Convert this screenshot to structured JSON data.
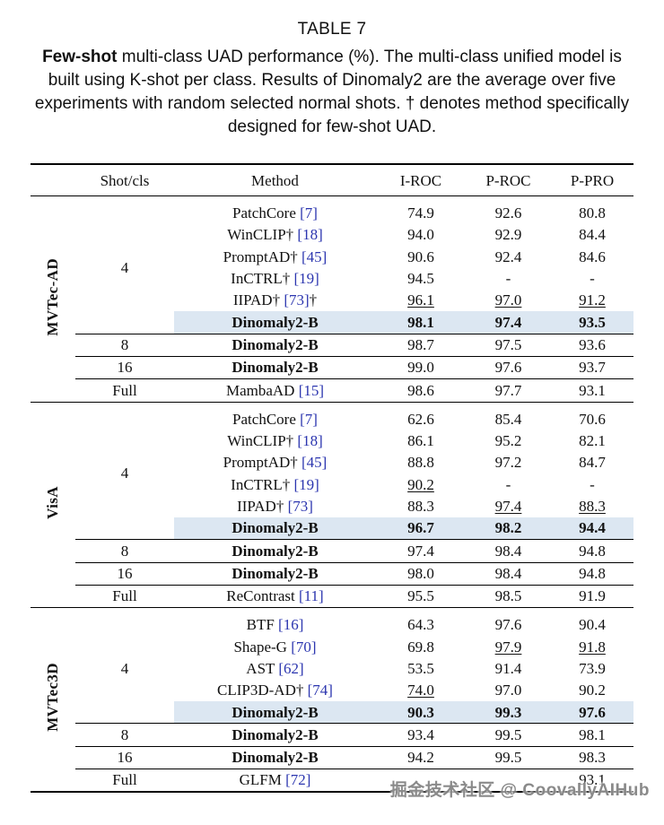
{
  "title": "TABLE 7",
  "caption": {
    "bold_prefix": "Few-shot",
    "rest": " multi-class UAD performance (%). The multi-class unified model is built using K-shot per class. Results of Dinomaly2 are the average over five experiments with random selected normal shots. † denotes method specifically designed for few-shot UAD."
  },
  "colors": {
    "highlight": "#dce7f2",
    "citation": "#2b35af"
  },
  "watermark": "掘金技术社区 @ CoovallyAIHub",
  "table": {
    "columns": [
      "Shot/cls",
      "Method",
      "I-ROC",
      "P-ROC",
      "P-PRO"
    ],
    "groups": [
      {
        "dataset": "MVTec-AD",
        "blocks": [
          {
            "shot": "4",
            "rows": [
              {
                "method": "PatchCore",
                "cite": "[7]",
                "values": [
                  {
                    "t": "74.9"
                  },
                  {
                    "t": "92.6"
                  },
                  {
                    "t": "80.8"
                  }
                ]
              },
              {
                "method": "WinCLIP†",
                "cite": "[18]",
                "values": [
                  {
                    "t": "94.0"
                  },
                  {
                    "t": "92.9"
                  },
                  {
                    "t": "84.4"
                  }
                ]
              },
              {
                "method": "PromptAD†",
                "cite": "[45]",
                "values": [
                  {
                    "t": "90.6"
                  },
                  {
                    "t": "92.4"
                  },
                  {
                    "t": "84.6"
                  }
                ]
              },
              {
                "method": "InCTRL†",
                "cite": "[19]",
                "values": [
                  {
                    "t": "94.5"
                  },
                  {
                    "t": "-"
                  },
                  {
                    "t": "-"
                  }
                ]
              },
              {
                "method": "IIPAD†",
                "cite": "[73]",
                "suffix": "†",
                "values": [
                  {
                    "t": "96.1",
                    "u": true
                  },
                  {
                    "t": "97.0",
                    "u": true
                  },
                  {
                    "t": "91.2",
                    "u": true
                  }
                ]
              },
              {
                "method": "Dinomaly2-B",
                "bold": true,
                "highlight": true,
                "values": [
                  {
                    "t": "98.1",
                    "b": true
                  },
                  {
                    "t": "97.4",
                    "b": true
                  },
                  {
                    "t": "93.5",
                    "b": true
                  }
                ]
              }
            ]
          },
          {
            "shot": "8",
            "rows": [
              {
                "method": "Dinomaly2-B",
                "bold": true,
                "values": [
                  {
                    "t": "98.7"
                  },
                  {
                    "t": "97.5"
                  },
                  {
                    "t": "93.6"
                  }
                ]
              }
            ]
          },
          {
            "shot": "16",
            "rows": [
              {
                "method": "Dinomaly2-B",
                "bold": true,
                "values": [
                  {
                    "t": "99.0"
                  },
                  {
                    "t": "97.6"
                  },
                  {
                    "t": "93.7"
                  }
                ]
              }
            ]
          },
          {
            "shot": "Full",
            "rows": [
              {
                "method": "MambaAD",
                "cite": "[15]",
                "values": [
                  {
                    "t": "98.6"
                  },
                  {
                    "t": "97.7"
                  },
                  {
                    "t": "93.1"
                  }
                ]
              }
            ]
          }
        ]
      },
      {
        "dataset": "VisA",
        "blocks": [
          {
            "shot": "4",
            "rows": [
              {
                "method": "PatchCore",
                "cite": "[7]",
                "values": [
                  {
                    "t": "62.6"
                  },
                  {
                    "t": "85.4"
                  },
                  {
                    "t": "70.6"
                  }
                ]
              },
              {
                "method": "WinCLIP†",
                "cite": "[18]",
                "values": [
                  {
                    "t": "86.1"
                  },
                  {
                    "t": "95.2"
                  },
                  {
                    "t": "82.1"
                  }
                ]
              },
              {
                "method": "PromptAD†",
                "cite": "[45]",
                "values": [
                  {
                    "t": "88.8"
                  },
                  {
                    "t": "97.2"
                  },
                  {
                    "t": "84.7"
                  }
                ]
              },
              {
                "method": "InCTRL†",
                "cite": "[19]",
                "values": [
                  {
                    "t": "90.2",
                    "u": true
                  },
                  {
                    "t": "-"
                  },
                  {
                    "t": "-"
                  }
                ]
              },
              {
                "method": "IIPAD†",
                "cite": "[73]",
                "values": [
                  {
                    "t": "88.3"
                  },
                  {
                    "t": "97.4",
                    "u": true
                  },
                  {
                    "t": "88.3",
                    "u": true
                  }
                ]
              },
              {
                "method": "Dinomaly2-B",
                "bold": true,
                "highlight": true,
                "values": [
                  {
                    "t": "96.7",
                    "b": true
                  },
                  {
                    "t": "98.2",
                    "b": true
                  },
                  {
                    "t": "94.4",
                    "b": true
                  }
                ]
              }
            ]
          },
          {
            "shot": "8",
            "rows": [
              {
                "method": "Dinomaly2-B",
                "bold": true,
                "values": [
                  {
                    "t": "97.4"
                  },
                  {
                    "t": "98.4"
                  },
                  {
                    "t": "94.8"
                  }
                ]
              }
            ]
          },
          {
            "shot": "16",
            "rows": [
              {
                "method": "Dinomaly2-B",
                "bold": true,
                "values": [
                  {
                    "t": "98.0"
                  },
                  {
                    "t": "98.4"
                  },
                  {
                    "t": "94.8"
                  }
                ]
              }
            ]
          },
          {
            "shot": "Full",
            "rows": [
              {
                "method": "ReContrast",
                "cite": "[11]",
                "values": [
                  {
                    "t": "95.5"
                  },
                  {
                    "t": "98.5"
                  },
                  {
                    "t": "91.9"
                  }
                ]
              }
            ]
          }
        ]
      },
      {
        "dataset": "MVTec3D",
        "blocks": [
          {
            "shot": "4",
            "rows": [
              {
                "method": "BTF",
                "cite": "[16]",
                "values": [
                  {
                    "t": "64.3"
                  },
                  {
                    "t": "97.6"
                  },
                  {
                    "t": "90.4"
                  }
                ]
              },
              {
                "method": "Shape-G",
                "cite": "[70]",
                "values": [
                  {
                    "t": "69.8"
                  },
                  {
                    "t": "97.9",
                    "u": true
                  },
                  {
                    "t": "91.8",
                    "u": true
                  }
                ]
              },
              {
                "method": "AST",
                "cite": "[62]",
                "values": [
                  {
                    "t": "53.5"
                  },
                  {
                    "t": "91.4"
                  },
                  {
                    "t": "73.9"
                  }
                ]
              },
              {
                "method": "CLIP3D-AD†",
                "cite": "[74]",
                "values": [
                  {
                    "t": "74.0",
                    "u": true
                  },
                  {
                    "t": "97.0"
                  },
                  {
                    "t": "90.2"
                  }
                ]
              },
              {
                "method": "Dinomaly2-B",
                "bold": true,
                "highlight": true,
                "values": [
                  {
                    "t": "90.3",
                    "b": true
                  },
                  {
                    "t": "99.3",
                    "b": true
                  },
                  {
                    "t": "97.6",
                    "b": true
                  }
                ]
              }
            ]
          },
          {
            "shot": "8",
            "rows": [
              {
                "method": "Dinomaly2-B",
                "bold": true,
                "values": [
                  {
                    "t": "93.4"
                  },
                  {
                    "t": "99.5"
                  },
                  {
                    "t": "98.1"
                  }
                ]
              }
            ]
          },
          {
            "shot": "16",
            "rows": [
              {
                "method": "Dinomaly2-B",
                "bold": true,
                "values": [
                  {
                    "t": "94.2"
                  },
                  {
                    "t": "99.5"
                  },
                  {
                    "t": "98.3"
                  }
                ]
              }
            ]
          },
          {
            "shot": "Full",
            "rows": [
              {
                "method": "GLFM",
                "cite": "[72]",
                "values": [
                  {
                    "t": ""
                  },
                  {
                    "t": ""
                  },
                  {
                    "t": "93.1"
                  }
                ]
              }
            ]
          }
        ]
      }
    ]
  }
}
